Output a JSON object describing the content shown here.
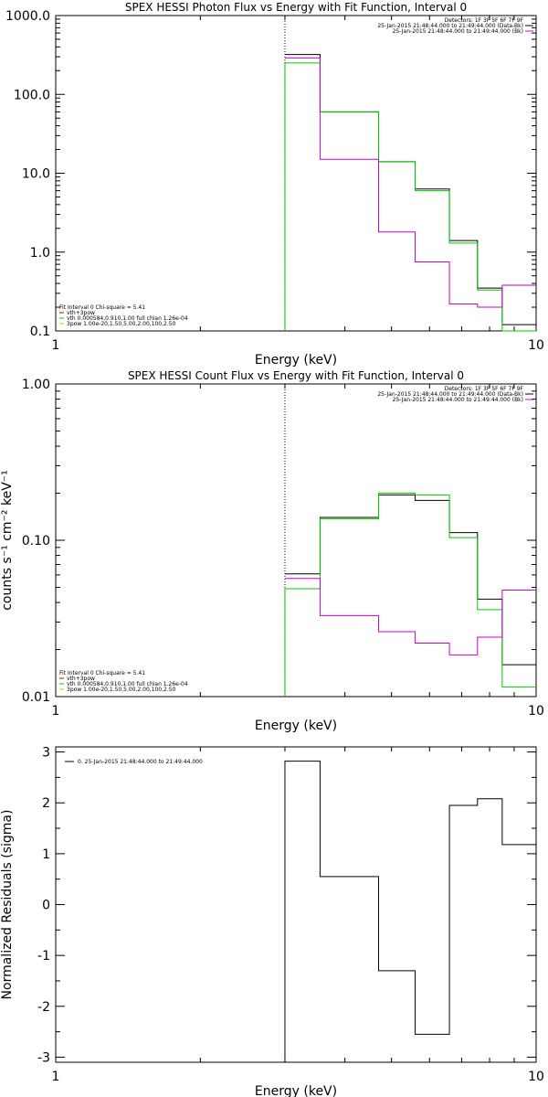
{
  "chart_data": [
    {
      "type": "step",
      "scale": {
        "x": "log",
        "y": "log"
      },
      "title": "SPEX HESSI Photon Flux vs Energy with Fit Function, Interval 0",
      "xlabel": "Energy (keV)",
      "ylabel": "",
      "xlim": [
        1,
        10
      ],
      "ylim": [
        0.1,
        1000
      ],
      "xticks": [
        {
          "v": 1,
          "label": "1"
        },
        {
          "v": 10,
          "label": "10"
        }
      ],
      "yticks": [
        {
          "v": 0.1,
          "label": "0.1"
        },
        {
          "v": 1,
          "label": "1.0"
        },
        {
          "v": 10,
          "label": "10.0"
        },
        {
          "v": 100,
          "label": "100.0"
        },
        {
          "v": 1000,
          "label": "1000.0"
        }
      ],
      "vline_x": 3.0,
      "legend_top": [
        {
          "text": "Detectors: 1F 3F 5F 6F 7F 9F",
          "color": ""
        },
        {
          "text": "25-Jan-2015 21:48:44.000 to 21:49:44.000 (Data-Bk)",
          "color": "#000000"
        },
        {
          "text": "25-Jan-2015 21:48:44.000 to 21:49:44.000 (Bk)",
          "color": "#cc00cc"
        }
      ],
      "legend_bottom": [
        {
          "text": "Fit Interval 0   Chi-square = 5.41",
          "color": ""
        },
        {
          "text": "vth+3pow",
          "color": "#cc0000"
        },
        {
          "text": "vth 0.000584,0.910,1.00  full chian 1.26e-04",
          "color": "#00cc00"
        },
        {
          "text": "3pow 1.00e-20,1.50,5.00,2.00,100,2.50",
          "color": "#cccc00"
        }
      ],
      "edges": [
        3.0,
        3.55,
        4.7,
        5.6,
        6.6,
        7.55,
        8.5,
        9.5,
        10.0
      ],
      "series": [
        {
          "color": "#000000",
          "values": [
            320,
            60,
            14,
            6.3,
            1.4,
            0.35,
            0.12,
            0.12
          ]
        },
        {
          "color": "#00cc00",
          "values": [
            250,
            60,
            14,
            6.0,
            1.3,
            0.33,
            0.1,
            0.1
          ]
        },
        {
          "color": "#cc00cc",
          "values": [
            290,
            15,
            1.8,
            0.75,
            0.22,
            0.2,
            0.38,
            0.38
          ]
        }
      ]
    },
    {
      "type": "step",
      "scale": {
        "x": "log",
        "y": "log"
      },
      "title": "SPEX HESSI Count Flux vs Energy with Fit Function, Interval 0",
      "xlabel": "Energy (keV)",
      "ylabel": "counts s⁻¹ cm⁻² keV⁻¹",
      "xlim": [
        1,
        10
      ],
      "ylim": [
        0.01,
        1
      ],
      "xticks": [
        {
          "v": 1,
          "label": "1"
        },
        {
          "v": 10,
          "label": "10"
        }
      ],
      "yticks": [
        {
          "v": 0.01,
          "label": "0.01"
        },
        {
          "v": 0.1,
          "label": "0.10"
        },
        {
          "v": 1,
          "label": "1.00"
        }
      ],
      "vline_x": 3.0,
      "legend_top": [
        {
          "text": "Detectors: 1F 3F 5F 6F 7F 9F",
          "color": ""
        },
        {
          "text": "25-Jan-2015 21:48:44.000 to 21:49:44.000 (Data-Bk)",
          "color": "#000000"
        },
        {
          "text": "25-Jan-2015 21:48:44.000 to 21:49:44.000 (Bk)",
          "color": "#cc00cc"
        }
      ],
      "legend_bottom": [
        {
          "text": "Fit Interval 0   Chi-square = 5.41",
          "color": ""
        },
        {
          "text": "vth+3pow",
          "color": "#cc0000"
        },
        {
          "text": "vth 0.000584,0.910,1.00  full chian 1.26e-04",
          "color": "#00cc00"
        },
        {
          "text": "3pow 1.00e-20,1.50,5.00,2.00,100,2.50",
          "color": "#cccc00"
        }
      ],
      "edges": [
        3.0,
        3.55,
        4.7,
        5.6,
        6.6,
        7.55,
        8.5,
        9.5,
        10.0
      ],
      "series": [
        {
          "color": "#000000",
          "values": [
            0.061,
            0.14,
            0.195,
            0.18,
            0.112,
            0.042,
            0.016,
            0.016
          ]
        },
        {
          "color": "#00cc00",
          "values": [
            0.049,
            0.137,
            0.2,
            0.195,
            0.104,
            0.036,
            0.0115,
            0.0115
          ]
        },
        {
          "color": "#cc00cc",
          "values": [
            0.057,
            0.033,
            0.026,
            0.022,
            0.0185,
            0.024,
            0.048,
            0.048
          ]
        }
      ]
    },
    {
      "type": "step",
      "scale": {
        "x": "log",
        "y": "linear"
      },
      "title": "",
      "xlabel": "Energy (keV)",
      "ylabel": "Normalized Residuals (sigma)",
      "xlim": [
        1,
        10
      ],
      "ylim": [
        -3.1,
        3.1
      ],
      "xticks": [
        {
          "v": 1,
          "label": "1"
        },
        {
          "v": 10,
          "label": "10"
        }
      ],
      "yticks": [
        {
          "v": -3,
          "label": "-3"
        },
        {
          "v": -2,
          "label": "-2"
        },
        {
          "v": -1,
          "label": "-1"
        },
        {
          "v": 0,
          "label": "0"
        },
        {
          "v": 1,
          "label": "1"
        },
        {
          "v": 2,
          "label": "2"
        },
        {
          "v": 3,
          "label": "3"
        }
      ],
      "vline_x": null,
      "legend_top": [],
      "legend_bottom": [],
      "legend_inset": [
        {
          "text": "0. 25-Jan-2015 21:48:44.000 to 21:49:44.000",
          "color": "#000000"
        }
      ],
      "edges": [
        3.0,
        3.55,
        4.7,
        5.6,
        6.6,
        7.55,
        8.5,
        9.5,
        10.0
      ],
      "series": [
        {
          "color": "#000000",
          "values": [
            2.82,
            0.55,
            -1.3,
            -2.55,
            1.95,
            2.08,
            1.18,
            1.18
          ],
          "drop_to_bottom": true
        }
      ]
    }
  ]
}
